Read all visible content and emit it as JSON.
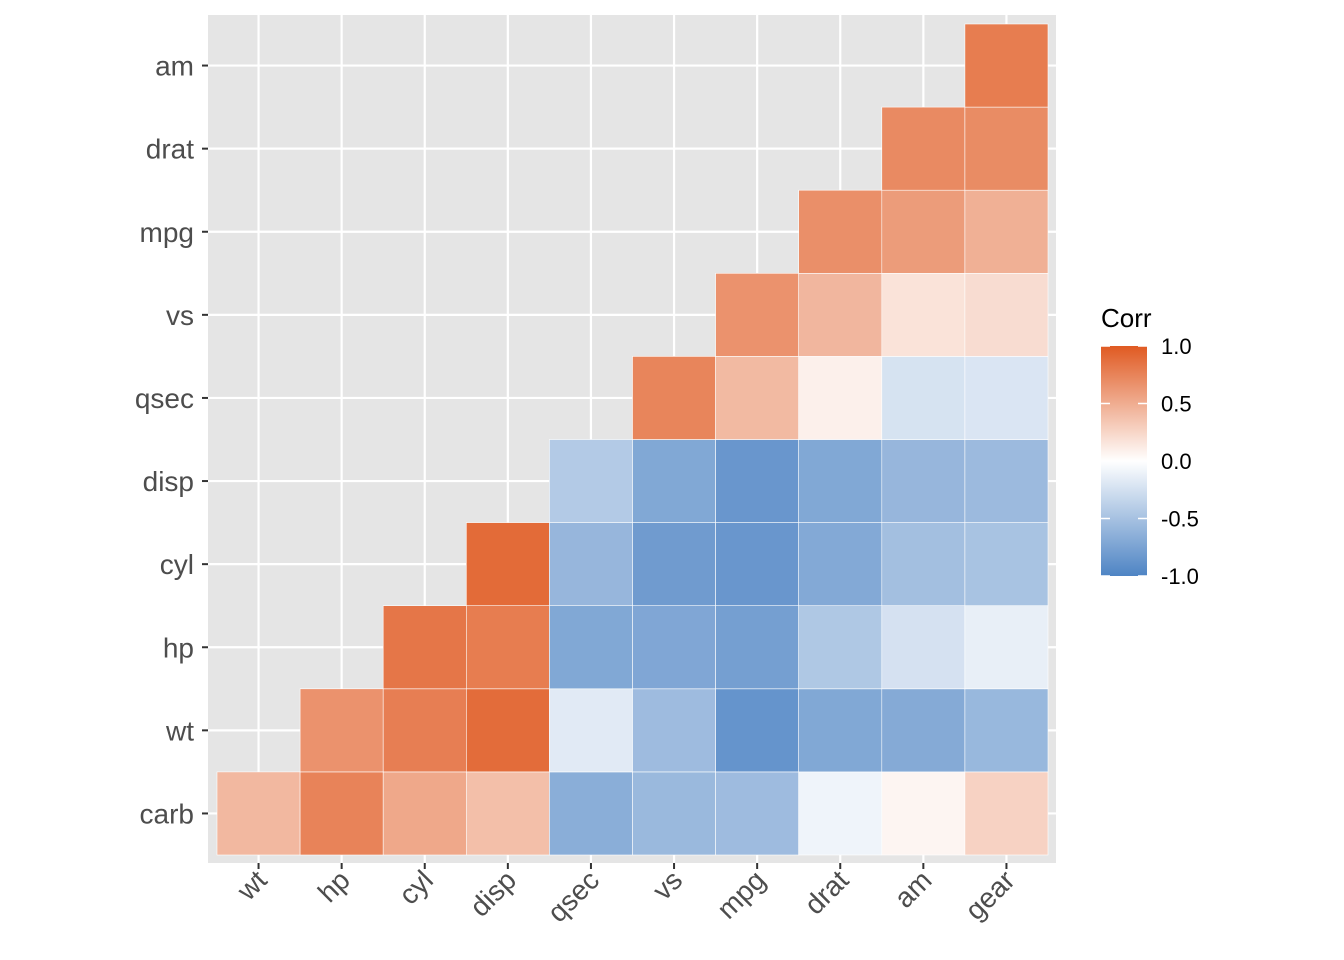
{
  "chart_data": {
    "type": "heatmap",
    "title": "",
    "xlabel": "",
    "ylabel": "",
    "x_categories": [
      "wt",
      "hp",
      "cyl",
      "disp",
      "qsec",
      "vs",
      "mpg",
      "drat",
      "am",
      "gear"
    ],
    "y_categories": [
      "carb",
      "wt",
      "hp",
      "cyl",
      "disp",
      "qsec",
      "vs",
      "mpg",
      "drat",
      "am"
    ],
    "values": [
      [
        0.43,
        0.75,
        0.53,
        0.39,
        -0.66,
        -0.57,
        -0.55,
        -0.09,
        0.06,
        0.27
      ],
      [
        null,
        0.66,
        0.78,
        0.89,
        -0.17,
        -0.55,
        -0.87,
        -0.71,
        -0.69,
        -0.58
      ],
      [
        null,
        null,
        0.83,
        0.79,
        -0.71,
        -0.72,
        -0.78,
        -0.45,
        -0.24,
        -0.13
      ],
      [
        null,
        null,
        null,
        0.9,
        -0.59,
        -0.81,
        -0.85,
        -0.7,
        -0.52,
        -0.49
      ],
      [
        null,
        null,
        null,
        null,
        -0.43,
        -0.71,
        -0.85,
        -0.71,
        -0.59,
        -0.56
      ],
      [
        null,
        null,
        null,
        null,
        null,
        0.74,
        0.42,
        0.09,
        -0.23,
        -0.21
      ],
      [
        null,
        null,
        null,
        null,
        null,
        null,
        0.66,
        0.44,
        0.17,
        0.21
      ],
      [
        null,
        null,
        null,
        null,
        null,
        null,
        null,
        0.68,
        0.6,
        0.48
      ],
      [
        null,
        null,
        null,
        null,
        null,
        null,
        null,
        null,
        0.71,
        0.7
      ],
      [
        null,
        null,
        null,
        null,
        null,
        null,
        null,
        null,
        null,
        0.79
      ]
    ],
    "color_scale": {
      "low": "#4E84C4",
      "mid": "#FFFFFF",
      "high": "#E05A22",
      "limits": [
        -1,
        1
      ]
    },
    "legend": {
      "title": "Corr",
      "ticks": [
        "1.0",
        "0.5",
        "0.0",
        "-0.5",
        "-1.0"
      ],
      "tick_values": [
        1,
        0.5,
        0,
        -0.5,
        -1
      ],
      "position": "right"
    },
    "grid": true,
    "panel_background": "#E5E5E5"
  }
}
